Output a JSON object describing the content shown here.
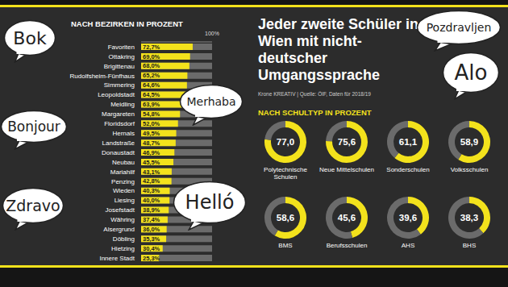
{
  "title": "Jeder zweite Schüler in Wien mit nicht-deutscher Umgangssprache",
  "source": "Krone KREATIV | Quelle: ÖIF, Daten für 2018/19",
  "greetings": [
    "Bok",
    "Bonjour",
    "Zdravo",
    "Merhaba",
    "Helló",
    "Pozdravljen",
    "Alo"
  ],
  "chart_data": [
    {
      "type": "bar",
      "title": "NACH BEZIRKEN IN PROZENT",
      "orientation": "horizontal",
      "categories": [
        "Favoriten",
        "Ottakring",
        "Brigittenau",
        "Rudolfsheim-Fünfhaus",
        "Simmering",
        "Leopoldstadt",
        "Meidling",
        "Margareten",
        "Floridsdorf",
        "Hernals",
        "Landstraße",
        "Donaustadt",
        "Neubau",
        "Mariahilf",
        "Penzing",
        "Wieden",
        "Liesing",
        "Josefstadt",
        "Währing",
        "Alsergrund",
        "Döbling",
        "Hietzing",
        "Innere Stadt"
      ],
      "values": [
        72.7,
        69.0,
        68.0,
        65.2,
        64.6,
        64.5,
        63.9,
        54.8,
        52.0,
        49.5,
        48.7,
        46.9,
        45.5,
        43.1,
        42.8,
        40.3,
        40.0,
        38.9,
        37.4,
        36.0,
        35.3,
        30.4,
        25.3
      ],
      "value_labels": [
        "72,7%",
        "69,0%",
        "68,0%",
        "65,2%",
        "64,6%",
        "64,5%",
        "63,9%",
        "54,8%",
        "52,0%",
        "49,5%",
        "48,7%",
        "46,9%",
        "45,5%",
        "43,1%",
        "42,8%",
        "40,3%",
        "40,0%",
        "38,9%",
        "37,4%",
        "36,0%",
        "35,3%",
        "30,4%",
        "25,3%"
      ],
      "color": "#f3e21c",
      "xlim": [
        0,
        100
      ],
      "xticks": [
        {
          "value": 100,
          "label": "100%"
        }
      ],
      "data_labels": true
    },
    {
      "type": "donut",
      "title": "NACH SCHULTYP IN PROZENT",
      "categories": [
        "Polytechnische Schulen",
        "Neue Mittelschulen",
        "Sonderschulen",
        "Volksschulen",
        "BMS",
        "Berufsschulen",
        "AHS",
        "BHS"
      ],
      "values": [
        77.0,
        75.6,
        61.1,
        58.9,
        58.6,
        45.6,
        39.6,
        38.3
      ],
      "value_labels": [
        "77,0",
        "75,6",
        "61,1",
        "58,9",
        "58,6",
        "45,6",
        "39,6",
        "38,3"
      ],
      "color": "#f3e21c",
      "ylim": [
        0,
        100
      ],
      "data_labels": true
    }
  ]
}
